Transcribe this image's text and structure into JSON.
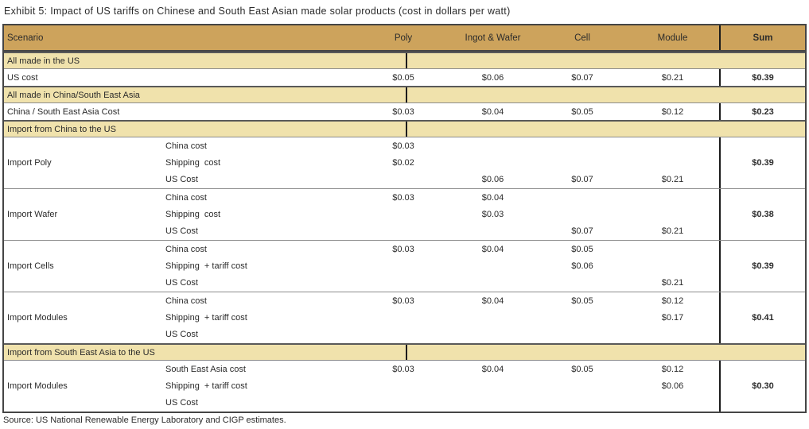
{
  "page": {
    "title": "Exhibit 5: Impact of US tariffs on Chinese and South East Asian made solar products (cost in dollars per watt)",
    "source": "Source: US National Renewable Energy Laboratory and CIGP estimates."
  },
  "colors": {
    "header_bg": "#CDA35C",
    "section_bg": "#F0E2AC",
    "outer_border": "#454545",
    "grid": "#8c8c8c",
    "sum_border": "#1c1c1c",
    "text": "#2b2b2b"
  },
  "table": {
    "columns": {
      "scenario": "Scenario",
      "poly": "Poly",
      "ingot_wafer": "Ingot & Wafer",
      "cell": "Cell",
      "module": "Module",
      "sum": "Sum"
    },
    "col_keys": [
      "poly",
      "ingot-wafer",
      "cell",
      "module"
    ],
    "rows": [
      {
        "type": "section",
        "label": "All made in the US"
      },
      {
        "type": "simple",
        "label": "US cost",
        "cells": [
          "$0.05",
          "$0.06",
          "$0.07",
          "$0.21"
        ],
        "sum": "$0.39"
      },
      {
        "type": "section",
        "label": "All made in China/South East Asia"
      },
      {
        "type": "simple",
        "label": "China / South East Asia Cost",
        "cells": [
          "$0.03",
          "$0.04",
          "$0.05",
          "$0.12"
        ],
        "sum": "$0.23"
      },
      {
        "type": "section",
        "label": "Import from China to the US"
      },
      {
        "type": "group",
        "label": "Import Poly",
        "sum": "$0.39",
        "subrows": [
          {
            "label": "China cost",
            "cells": [
              "$0.03",
              "",
              "",
              ""
            ]
          },
          {
            "label": "Shipping  cost",
            "cells": [
              "$0.02",
              "",
              "",
              ""
            ]
          },
          {
            "label": "US Cost",
            "cells": [
              "",
              "$0.06",
              "$0.07",
              "$0.21"
            ]
          }
        ]
      },
      {
        "type": "group",
        "label": "Import Wafer",
        "sum": "$0.38",
        "subrows": [
          {
            "label": "China cost",
            "cells": [
              "$0.03",
              "$0.04",
              "",
              ""
            ]
          },
          {
            "label": "Shipping  cost",
            "cells": [
              "",
              "$0.03",
              "",
              ""
            ]
          },
          {
            "label": "US Cost",
            "cells": [
              "",
              "",
              "$0.07",
              "$0.21"
            ]
          }
        ]
      },
      {
        "type": "group",
        "label": "Import Cells",
        "sum": "$0.39",
        "subrows": [
          {
            "label": "China cost",
            "cells": [
              "$0.03",
              "$0.04",
              "$0.05",
              ""
            ]
          },
          {
            "label": "Shipping  + tariff cost",
            "cells": [
              "",
              "",
              "$0.06",
              ""
            ]
          },
          {
            "label": "US Cost",
            "cells": [
              "",
              "",
              "",
              "$0.21"
            ]
          }
        ]
      },
      {
        "type": "group",
        "label": "Import Modules",
        "sum": "$0.41",
        "subrows": [
          {
            "label": "China cost",
            "cells": [
              "$0.03",
              "$0.04",
              "$0.05",
              "$0.12"
            ]
          },
          {
            "label": "Shipping  + tariff cost",
            "cells": [
              "",
              "",
              "",
              "$0.17"
            ]
          },
          {
            "label": "US Cost",
            "cells": [
              "",
              "",
              "",
              ""
            ]
          }
        ]
      },
      {
        "type": "section",
        "label": "Import from South East Asia to the US"
      },
      {
        "type": "group",
        "label": "Import Modules",
        "sum": "$0.30",
        "subrows": [
          {
            "label": "South East Asia cost",
            "cells": [
              "$0.03",
              "$0.04",
              "$0.05",
              "$0.12"
            ]
          },
          {
            "label": "Shipping  + tariff cost",
            "cells": [
              "",
              "",
              "",
              "$0.06"
            ]
          },
          {
            "label": "US Cost",
            "cells": [
              "",
              "",
              "",
              ""
            ]
          }
        ]
      }
    ]
  }
}
